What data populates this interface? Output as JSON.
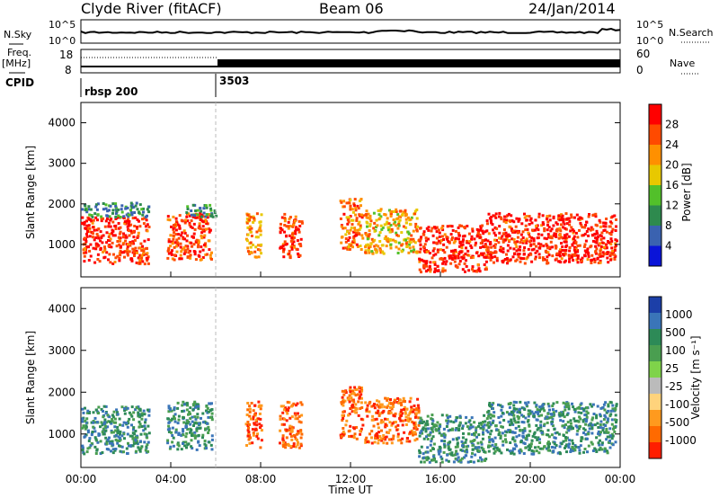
{
  "header": {
    "station": "Clyde River (fitACF)",
    "beam": "Beam 06",
    "date": "24/Jan/2014"
  },
  "status_panels": {
    "nsky": {
      "label": "N.Sky",
      "ticks": [
        "10^5",
        "10^0"
      ]
    },
    "nsearch": {
      "label": "N.Search",
      "ticks": [
        "10^5",
        "10^0"
      ]
    },
    "freq": {
      "label_line1": "Freq.",
      "label_line2": "[MHz]",
      "ticks": [
        "18",
        "8"
      ]
    },
    "nave": {
      "label": "Nave",
      "ticks": [
        "60",
        "0"
      ]
    },
    "cpid": {
      "label": "CPID",
      "segments": [
        {
          "name": "rbsp 200",
          "start_hour": 0
        },
        {
          "name": "3503",
          "start_hour": 6
        }
      ]
    }
  },
  "chart_data": [
    {
      "type": "heatmap",
      "title": "",
      "xlabel": "",
      "ylabel": "Slant Range [km]",
      "xlim": [
        0,
        24
      ],
      "ylim": [
        200,
        4500
      ],
      "yticks": [
        1000,
        2000,
        3000,
        4000
      ],
      "colorbar": {
        "label": "Power [dB]",
        "ticks": [
          "28",
          "24",
          "20",
          "16",
          "12",
          "8",
          "4"
        ],
        "colors": [
          "#ff0000",
          "#ff4a00",
          "#ff9000",
          "#e8c800",
          "#52c02a",
          "#2e8a4e",
          "#3a62b0",
          "#0a14d8"
        ]
      },
      "regions": [
        {
          "t0": 0.0,
          "t1": 3.0,
          "r0": 550,
          "r1": 1700,
          "level": 27
        },
        {
          "t0": 0.0,
          "t1": 3.0,
          "r0": 1700,
          "r1": 2050,
          "level": 8
        },
        {
          "t0": 3.8,
          "t1": 5.8,
          "r0": 650,
          "r1": 1800,
          "level": 26
        },
        {
          "t0": 4.6,
          "t1": 6.0,
          "r0": 1700,
          "r1": 2000,
          "level": 8
        },
        {
          "t0": 7.3,
          "t1": 8.0,
          "r0": 700,
          "r1": 1800,
          "level": 20
        },
        {
          "t0": 8.8,
          "t1": 9.8,
          "r0": 700,
          "r1": 1800,
          "level": 25
        },
        {
          "t0": 11.5,
          "t1": 12.5,
          "r0": 900,
          "r1": 2150,
          "level": 22
        },
        {
          "t0": 12.6,
          "t1": 15.0,
          "r0": 800,
          "r1": 1900,
          "level": 18
        },
        {
          "t0": 15.0,
          "t1": 18.0,
          "r0": 350,
          "r1": 1500,
          "level": 27
        },
        {
          "t0": 18.0,
          "t1": 23.8,
          "r0": 550,
          "r1": 1800,
          "level": 27
        }
      ]
    },
    {
      "type": "heatmap",
      "title": "",
      "xlabel": "Time UT",
      "ylabel": "Slant Range [km]",
      "xlim": [
        0,
        24
      ],
      "ylim": [
        200,
        4500
      ],
      "yticks": [
        1000,
        2000,
        3000,
        4000
      ],
      "xticks": [
        "00:00",
        "04:00",
        "08:00",
        "12:00",
        "16:00",
        "20:00",
        "00:00"
      ],
      "colorbar": {
        "label": "Velocity [m s⁻¹]",
        "ticks": [
          "1000",
          "500",
          "100",
          "25",
          "-25",
          "-100",
          "-500",
          "-1000"
        ],
        "colors": [
          "#1c3fa8",
          "#3a75b8",
          "#2d8a57",
          "#4a9e50",
          "#7fd34a",
          "#bbbbbb",
          "#ffd37c",
          "#ff9a1e",
          "#ff6a00",
          "#ff1e00"
        ]
      },
      "regions": [
        {
          "t0": 0.0,
          "t1": 3.0,
          "r0": 550,
          "r1": 1700,
          "level": 250
        },
        {
          "t0": 3.8,
          "t1": 5.8,
          "r0": 650,
          "r1": 1800,
          "level": 250
        },
        {
          "t0": 7.3,
          "t1": 8.0,
          "r0": 700,
          "r1": 1800,
          "level": -150
        },
        {
          "t0": 8.8,
          "t1": 9.8,
          "r0": 700,
          "r1": 1800,
          "level": -150
        },
        {
          "t0": 11.5,
          "t1": 12.5,
          "r0": 900,
          "r1": 2150,
          "level": -300
        },
        {
          "t0": 12.6,
          "t1": 15.0,
          "r0": 800,
          "r1": 1900,
          "level": -300
        },
        {
          "t0": 15.0,
          "t1": 18.0,
          "r0": 350,
          "r1": 1500,
          "level": 200
        },
        {
          "t0": 18.0,
          "t1": 23.8,
          "r0": 550,
          "r1": 1800,
          "level": 300
        }
      ]
    }
  ]
}
